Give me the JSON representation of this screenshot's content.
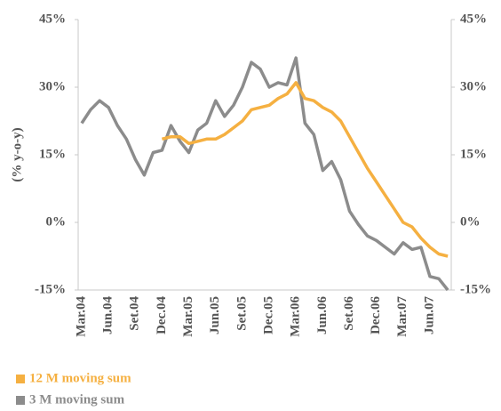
{
  "chart_data": {
    "type": "line",
    "y_label": "(% y-o-y)",
    "categories": [
      "Mar.04",
      null,
      null,
      "Jun.04",
      null,
      null,
      "Set.04",
      null,
      null,
      "Dec.04",
      null,
      null,
      "Mar.05",
      null,
      null,
      "Jun.05",
      null,
      null,
      "Set.05",
      null,
      null,
      "Dec.05",
      null,
      null,
      "Mar.06",
      null,
      null,
      "Jun.06",
      null,
      null,
      "Set.06",
      null,
      null,
      "Dec.06",
      null,
      null,
      "Mar.07",
      null,
      null,
      "Jun.07",
      null,
      null
    ],
    "series": [
      {
        "name": "12 M moving sum",
        "color": "#f5b041",
        "values": [
          null,
          null,
          null,
          null,
          null,
          null,
          null,
          null,
          null,
          18.5,
          19,
          19,
          17.5,
          18,
          18.5,
          18.5,
          19.5,
          21,
          22.5,
          25,
          25.5,
          26,
          27.5,
          28.5,
          31,
          27.5,
          27,
          25.5,
          24.5,
          22.5,
          19,
          15.5,
          12,
          9,
          6,
          3,
          0,
          -1,
          -3.5,
          -5.5,
          -7,
          -7.5
        ]
      },
      {
        "name": "3 M moving sum",
        "color": "#8c8c8c",
        "values": [
          22,
          25,
          27,
          25.5,
          21.5,
          18.5,
          14,
          10.5,
          15.5,
          16,
          21.5,
          18,
          15.5,
          20.5,
          22,
          27,
          23.5,
          26,
          30,
          35.5,
          34,
          30,
          31,
          30.5,
          36.5,
          22,
          19.5,
          11.5,
          13.5,
          9.5,
          2.5,
          -0.5,
          -3,
          -4,
          -5.5,
          -7,
          -4.5,
          -6,
          -5.5,
          -12,
          -12.5,
          -15
        ]
      }
    ],
    "ylim": [
      -15,
      45
    ],
    "yticks": [
      {
        "value": -15,
        "label": "-15%"
      },
      {
        "value": 0,
        "label": "0%"
      },
      {
        "value": 15,
        "label": "15%"
      },
      {
        "value": 30,
        "label": "30%"
      },
      {
        "value": 45,
        "label": "45%"
      }
    ],
    "y2lim": [
      -15,
      45
    ],
    "y2ticks": [
      {
        "value": -15,
        "label": "-15%"
      },
      {
        "value": 0,
        "label": "0%"
      },
      {
        "value": 15,
        "label": "15%"
      },
      {
        "value": 30,
        "label": "30%"
      },
      {
        "value": 45,
        "label": "45%"
      }
    ],
    "grid": false,
    "legend": "bottom-left"
  }
}
